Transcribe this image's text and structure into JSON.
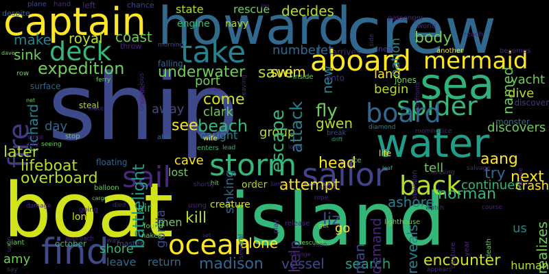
{
  "background": "#000000",
  "palette": [
    "#fde725",
    "#b5de2b",
    "#6ece58",
    "#35b779",
    "#1f9e89",
    "#26828e",
    "#31688e",
    "#3e4989",
    "#482878",
    "#440154"
  ],
  "words": [
    {
      "text": "ship",
      "color": "#3e4989",
      "vertical": false
    },
    {
      "text": "boat",
      "color": "#d2e21b",
      "vertical": false
    },
    {
      "text": "island",
      "color": "#35b779",
      "vertical": false
    },
    {
      "text": "crew",
      "color": "#31688e",
      "vertical": false
    },
    {
      "text": "howard",
      "color": "#31688e",
      "vertical": false
    },
    {
      "text": "captain",
      "color": "#fde725",
      "vertical": false
    },
    {
      "text": "water",
      "color": "#1f9e89",
      "vertical": false
    },
    {
      "text": "sea",
      "color": "#2db27d",
      "vertical": false
    },
    {
      "text": "find",
      "color": "#3e4989",
      "vertical": false
    },
    {
      "text": "storm",
      "color": "#35b779",
      "vertical": false
    },
    {
      "text": "ocean",
      "color": "#fde725",
      "vertical": false
    },
    {
      "text": "aboard",
      "color": "#fde725",
      "vertical": false
    },
    {
      "text": "sailor",
      "color": "#414487",
      "vertical": false
    },
    {
      "text": "sail",
      "color": "#482878",
      "vertical": false
    },
    {
      "text": "back",
      "color": "#b5de2b",
      "vertical": false
    },
    {
      "text": "deck",
      "color": "#35b779",
      "vertical": false
    },
    {
      "text": "take",
      "color": "#26828e",
      "vertical": false
    },
    {
      "text": "mermaid",
      "color": "#fde725",
      "vertical": false
    },
    {
      "text": "spider",
      "color": "#35b779",
      "vertical": false
    },
    {
      "text": "board",
      "color": "#31688e",
      "vertical": false
    },
    {
      "text": "fire",
      "color": "#443983",
      "vertical": true
    },
    {
      "text": "expedition",
      "color": "#6ece58",
      "vertical": false
    },
    {
      "text": "lifeboat",
      "color": "#b5de2b",
      "vertical": false
    },
    {
      "text": "overboard",
      "color": "#b5de2b",
      "vertical": false
    },
    {
      "text": "attempt",
      "color": "#fde725",
      "vertical": false
    },
    {
      "text": "encounter",
      "color": "#d2e21b",
      "vertical": false
    },
    {
      "text": "norman",
      "color": "#35b779",
      "vertical": false
    },
    {
      "text": "madison",
      "color": "#31688e",
      "vertical": false
    },
    {
      "text": "vessel",
      "color": "#3e4989",
      "vertical": false
    },
    {
      "text": "search",
      "color": "#1f9e89",
      "vertical": false
    },
    {
      "text": "leave",
      "color": "#31688e",
      "vertical": false
    },
    {
      "text": "return",
      "color": "#31688e",
      "vertical": false
    },
    {
      "text": "shore",
      "color": "#35b779",
      "vertical": false
    },
    {
      "text": "yacht",
      "color": "#6ece58",
      "vertical": false
    },
    {
      "text": "dive",
      "color": "#b5de2b",
      "vertical": false
    },
    {
      "text": "discovers",
      "color": "#6ece58",
      "vertical": false
    },
    {
      "text": "fly",
      "color": "#6ece58",
      "vertical": false
    },
    {
      "text": "gwen",
      "color": "#b5de2b",
      "vertical": false
    },
    {
      "text": "beach",
      "color": "#35b779",
      "vertical": false
    },
    {
      "text": "come",
      "color": "#d2e21b",
      "vertical": false
    },
    {
      "text": "clark",
      "color": "#6ece58",
      "vertical": false
    },
    {
      "text": "see",
      "color": "#fde725",
      "vertical": false
    },
    {
      "text": "group",
      "color": "#b5de2b",
      "vertical": false
    },
    {
      "text": "escape",
      "color": "#35b779",
      "vertical": true
    },
    {
      "text": "attack",
      "color": "#26828e",
      "vertical": true
    },
    {
      "text": "sinking",
      "color": "#31688e",
      "vertical": true
    },
    {
      "text": "liz",
      "color": "#3e4989",
      "vertical": false
    },
    {
      "text": "go",
      "color": "#fde725",
      "vertical": false
    },
    {
      "text": "kill",
      "color": "#b5de2b",
      "vertical": false
    },
    {
      "text": "alone",
      "color": "#fde725",
      "vertical": false
    },
    {
      "text": "head",
      "color": "#fde725",
      "vertical": false
    },
    {
      "text": "next",
      "color": "#fde725",
      "vertical": false
    },
    {
      "text": "try",
      "color": "#31688e",
      "vertical": false
    },
    {
      "text": "ashore",
      "color": "#26828e",
      "vertical": false
    },
    {
      "text": "reveals",
      "color": "#26828e",
      "vertical": true
    },
    {
      "text": "demand",
      "color": "#482878",
      "vertical": true
    },
    {
      "text": "man",
      "color": "#3e4989",
      "vertical": true
    },
    {
      "text": "help",
      "color": "#482878",
      "vertical": true
    },
    {
      "text": "save",
      "color": "#b5de2b",
      "vertical": false
    },
    {
      "text": "swim",
      "color": "#fde725",
      "vertical": false
    },
    {
      "text": "land",
      "color": "#fde725",
      "vertical": false
    },
    {
      "text": "begin",
      "color": "#b5de2b",
      "vertical": false
    },
    {
      "text": "body",
      "color": "#6ece58",
      "vertical": false
    },
    {
      "text": "named",
      "color": "#6ece58",
      "vertical": true
    },
    {
      "text": "nation",
      "color": "#26828e",
      "vertical": true
    },
    {
      "text": "underwater",
      "color": "#6ece58",
      "vertical": false
    },
    {
      "text": "port",
      "color": "#6ece58",
      "vertical": false
    },
    {
      "text": "coast",
      "color": "#6ece58",
      "vertical": false
    },
    {
      "text": "royal",
      "color": "#b5de2b",
      "vertical": false
    },
    {
      "text": "make",
      "color": "#26828e",
      "vertical": false
    },
    {
      "text": "sink",
      "color": "#6ece58",
      "vertical": false
    },
    {
      "text": "richard",
      "color": "#26828e",
      "vertical": true
    },
    {
      "text": "day",
      "color": "#31688e",
      "vertical": false
    },
    {
      "text": "later",
      "color": "#b5de2b",
      "vertical": false
    },
    {
      "text": "away",
      "color": "#3e4989",
      "vertical": false
    },
    {
      "text": "battlelight",
      "color": "#1f9e89",
      "vertical": true
    },
    {
      "text": "gorilla",
      "color": "#3e4989",
      "vertical": true
    },
    {
      "text": "cave",
      "color": "#fde725",
      "vertical": false
    },
    {
      "text": "lost",
      "color": "#6ece58",
      "vertical": false
    },
    {
      "text": "caught",
      "color": "#26828e",
      "vertical": false
    },
    {
      "text": "aang",
      "color": "#fde725",
      "vertical": false
    },
    {
      "text": "tell",
      "color": "#6ece58",
      "vertical": false
    },
    {
      "text": "continues",
      "color": "#35b779",
      "vertical": false
    },
    {
      "text": "crash",
      "color": "#fde725",
      "vertical": false
    },
    {
      "text": "realizes",
      "color": "#6ece58",
      "vertical": true
    },
    {
      "text": "decides",
      "color": "#b5de2b",
      "vertical": false
    },
    {
      "text": "state",
      "color": "#b5de2b",
      "vertical": false
    },
    {
      "text": "rescue",
      "color": "#6ece58",
      "vertical": false
    },
    {
      "text": "new",
      "color": "#26828e",
      "vertical": true
    },
    {
      "text": "number",
      "color": "#31688e",
      "vertical": false
    },
    {
      "text": "let",
      "color": "#31688e",
      "vertical": false
    },
    {
      "text": "near",
      "color": "#443983",
      "vertical": false
    },
    {
      "text": "human",
      "color": "#b5de2b",
      "vertical": false
    },
    {
      "text": "us",
      "color": "#26828e",
      "vertical": false
    },
    {
      "text": "amy",
      "color": "#6ece58",
      "vertical": false
    },
    {
      "text": "men",
      "color": "#6ece58",
      "vertical": false
    },
    {
      "text": "air",
      "color": "#35b779",
      "vertical": false
    },
    {
      "text": "long",
      "color": "#d2e21b",
      "vertical": false
    },
    {
      "text": "october",
      "color": "#35b779",
      "vertical": false
    },
    {
      "text": "master",
      "color": "#3e4989",
      "vertical": false
    },
    {
      "text": "creature",
      "color": "#d2e21b",
      "vertical": false
    },
    {
      "text": "order",
      "color": "#b5de2b",
      "vertical": false
    },
    {
      "text": "lighthouse",
      "color": "#6ece58",
      "vertical": false
    },
    {
      "text": "jones",
      "color": "#6ece58",
      "vertical": false
    },
    {
      "text": "monster",
      "color": "#31688e",
      "vertical": false
    },
    {
      "text": "discover",
      "color": "#443983",
      "vertical": false
    },
    {
      "text": "engine",
      "color": "#35b779",
      "vertical": false
    },
    {
      "text": "navy",
      "color": "#b5de2b",
      "vertical": false
    },
    {
      "text": "falling",
      "color": "#31688e",
      "vertical": false
    },
    {
      "text": "steal",
      "color": "#b5de2b",
      "vertical": false
    },
    {
      "text": "surface",
      "color": "#31688e",
      "vertical": false
    },
    {
      "text": "floating",
      "color": "#31688e",
      "vertical": false
    },
    {
      "text": "stop",
      "color": "#6ece58",
      "vertical": false
    },
    {
      "text": "plane",
      "color": "#3e4989",
      "vertical": false
    },
    {
      "text": "hand",
      "color": "#482878",
      "vertical": false
    },
    {
      "text": "left",
      "color": "#482878",
      "vertical": false
    },
    {
      "text": "chance",
      "color": "#3e4989",
      "vertical": false
    },
    {
      "text": "despite",
      "color": "#31688e",
      "vertical": false
    },
    {
      "text": "throw",
      "color": "#482878",
      "vertical": false
    },
    {
      "text": "morning",
      "color": "#3e4989",
      "vertical": false
    },
    {
      "text": "passenger",
      "color": "#482878",
      "vertical": false
    },
    {
      "text": "world",
      "color": "#482878",
      "vertical": false
    },
    {
      "text": "reach",
      "color": "#482878",
      "vertical": false
    },
    {
      "text": "another",
      "color": "#fde725",
      "vertical": false
    },
    {
      "text": "becomes",
      "color": "#482878",
      "vertical": false
    },
    {
      "text": "arrives",
      "color": "#482878",
      "vertical": false
    },
    {
      "text": "onto",
      "color": "#482878",
      "vertical": false
    },
    {
      "text": "inside",
      "color": "#6ece58",
      "vertical": false
    },
    {
      "text": "break",
      "color": "#3e4989",
      "vertical": false
    },
    {
      "text": "drift",
      "color": "#1f9e89",
      "vertical": false
    },
    {
      "text": "diamond",
      "color": "#26828e",
      "vertical": false
    },
    {
      "text": "room",
      "color": "#482878",
      "vertical": false
    },
    {
      "text": "notice",
      "color": "#482878",
      "vertical": false
    },
    {
      "text": "life",
      "color": "#fde725",
      "vertical": false
    },
    {
      "text": "ice",
      "color": "#6ece58",
      "vertical": false
    },
    {
      "text": "also",
      "color": "#31688e",
      "vertical": false
    },
    {
      "text": "wife",
      "color": "#fde725",
      "vertical": false
    },
    {
      "text": "enters",
      "color": "#35b779",
      "vertical": false
    },
    {
      "text": "lead",
      "color": "#35b779",
      "vertical": false
    },
    {
      "text": "lower",
      "color": "#482878",
      "vertical": false
    },
    {
      "text": "hit",
      "color": "#6ece58",
      "vertical": false
    },
    {
      "text": "jump",
      "color": "#482878",
      "vertical": false
    },
    {
      "text": "eyes",
      "color": "#482878",
      "vertical": false
    },
    {
      "text": "rope",
      "color": "#482878",
      "vertical": false
    },
    {
      "text": "learns",
      "color": "#482878",
      "vertical": false
    },
    {
      "text": "watch",
      "color": "#482878",
      "vertical": false
    },
    {
      "text": "course",
      "color": "#482878",
      "vertical": false
    },
    {
      "text": "salvage",
      "color": "#482878",
      "vertical": false
    },
    {
      "text": "missing",
      "color": "#482878",
      "vertical": false
    },
    {
      "text": "leaf",
      "color": "#35b779",
      "vertical": false
    },
    {
      "text": "using",
      "color": "#482878",
      "vertical": false
    },
    {
      "text": "release",
      "color": "#482878",
      "vertical": false
    },
    {
      "text": "get",
      "color": "#b5de2b",
      "vertical": false
    },
    {
      "text": "rescued",
      "color": "#6ece58",
      "vertical": false
    },
    {
      "text": "soon",
      "color": "#482878",
      "vertical": false
    },
    {
      "text": "set",
      "color": "#482878",
      "vertical": false
    },
    {
      "text": "naked",
      "color": "#6ece58",
      "vertical": false
    },
    {
      "text": "found",
      "color": "#6ece58",
      "vertical": false
    },
    {
      "text": "balloon",
      "color": "#6ece58",
      "vertical": false
    },
    {
      "text": "cargo",
      "color": "#6ece58",
      "vertical": false
    },
    {
      "text": "going",
      "color": "#482878",
      "vertical": false
    },
    {
      "text": "damage",
      "color": "#482878",
      "vertical": false
    },
    {
      "text": "giant",
      "color": "#6ece58",
      "vertical": false
    },
    {
      "text": "say",
      "color": "#482878",
      "vertical": false
    },
    {
      "text": "city",
      "color": "#482878",
      "vertical": false
    },
    {
      "text": "seeing",
      "color": "#6ece58",
      "vertical": false
    },
    {
      "text": "dave",
      "color": "#6ece58",
      "vertical": false
    },
    {
      "text": "row",
      "color": "#6ece58",
      "vertical": false
    },
    {
      "text": "net",
      "color": "#6ece58",
      "vertical": false
    },
    {
      "text": "ferry",
      "color": "#6ece58",
      "vertical": false
    },
    {
      "text": "mate",
      "color": "#482878",
      "vertical": false
    },
    {
      "text": "since",
      "color": "#482878",
      "vertical": false
    },
    {
      "text": "shortly",
      "color": "#482878",
      "vertical": false
    },
    {
      "text": "died",
      "color": "#482878",
      "vertical": false
    },
    {
      "text": "way",
      "color": "#482878",
      "vertical": false
    },
    {
      "text": "approach",
      "color": "#482878",
      "vertical": false
    },
    {
      "text": "several",
      "color": "#482878",
      "vertical": true
    },
    {
      "text": "play",
      "color": "#482878",
      "vertical": true
    },
    {
      "text": "capture",
      "color": "#482878",
      "vertical": true
    },
    {
      "text": "year",
      "color": "#482878",
      "vertical": true
    },
    {
      "text": "death",
      "color": "#6ece58",
      "vertical": true
    },
    {
      "text": "upon",
      "color": "#482878",
      "vertical": true
    },
    {
      "text": "pacific",
      "color": "#482878",
      "vertical": true
    },
    {
      "text": "unconscious",
      "color": "#482878",
      "vertical": true
    },
    {
      "text": "confronts",
      "color": "#482878",
      "vertical": true
    },
    {
      "text": "abandon",
      "color": "#482878",
      "vertical": true
    },
    {
      "text": "arrive",
      "color": "#482878",
      "vertical": true
    },
    {
      "text": "leaving",
      "color": "#482878",
      "vertical": true
    },
    {
      "text": "side",
      "color": "#482878",
      "vertical": true
    },
    {
      "text": "log",
      "color": "#482878",
      "vertical": false
    },
    {
      "text": "tribe",
      "color": "#482878",
      "vertical": false
    },
    {
      "text": "change",
      "color": "#482878",
      "vertical": false
    },
    {
      "text": "appears",
      "color": "#482878",
      "vertical": false
    },
    {
      "text": "remaining",
      "color": "#482878",
      "vertical": true
    },
    {
      "text": "stay",
      "color": "#482878",
      "vertical": false
    }
  ]
}
